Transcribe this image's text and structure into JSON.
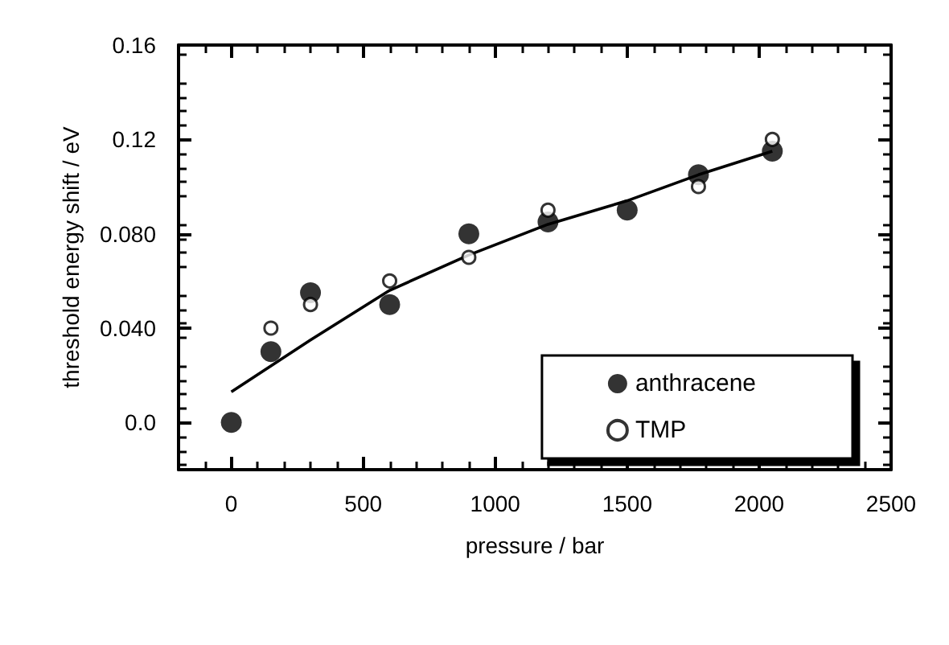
{
  "chart_data": {
    "type": "scatter",
    "xlabel": "pressure / bar",
    "ylabel": "threshold energy shift / eV",
    "xlim": [
      -200,
      2500
    ],
    "xticks": [
      0,
      500,
      1000,
      1500,
      2000,
      2500
    ],
    "ylim": [
      -0.02,
      0.16
    ],
    "yticks": [
      {
        "value": 0,
        "label": "0.0"
      },
      {
        "value": 0.04,
        "label": "0.040"
      },
      {
        "value": 0.08,
        "label": "0.080"
      },
      {
        "value": 0.12,
        "label": "0.12"
      },
      {
        "value": 0.16,
        "label": "0.16"
      }
    ],
    "grid": false,
    "legend": "bottom right",
    "series": [
      {
        "name": "anthracene",
        "marker": "circle",
        "color": "#000000",
        "x": [
          0,
          150,
          300,
          600,
          900,
          1200,
          1500,
          1770,
          2050
        ],
        "values": [
          0,
          0.03,
          0.055,
          0.05,
          0.08,
          0.085,
          0.09,
          0.105,
          0.115
        ]
      },
      {
        "name": "TMP",
        "marker": "circle",
        "color": "#000000",
        "x": [
          150,
          300,
          600,
          900,
          1200,
          1770,
          2050
        ],
        "values": [
          0.04,
          0.05,
          0.06,
          0.07,
          0.09,
          0.1,
          0.12
        ]
      },
      {
        "type": "line",
        "marker": "none",
        "line_style": "solid",
        "color": "#000000",
        "x": [
          0,
          300,
          600,
          900,
          1200,
          1500,
          1770,
          2050
        ],
        "values": [
          0.013,
          0.035,
          0.056,
          0.071,
          0.084,
          0.094,
          0.105,
          0.115
        ]
      }
    ]
  }
}
